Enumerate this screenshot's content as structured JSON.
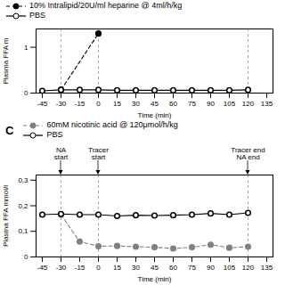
{
  "chart_data": [
    {
      "type": "line",
      "xlabel": "Time (min)",
      "ylabel": "Plasma FFA m",
      "xlim": [
        -50,
        140
      ],
      "xticks": [
        -45,
        -30,
        -15,
        0,
        15,
        30,
        45,
        60,
        75,
        90,
        105,
        120,
        135
      ],
      "ylim": [
        0,
        1.4
      ],
      "yticks": [
        0,
        1
      ],
      "grid": false,
      "legend": "top",
      "vlines": [
        -30,
        0,
        120
      ],
      "series": [
        {
          "name": "10% Intralipid/20U/ml heparine @ 4ml/h/kg",
          "color": "black",
          "marker": "circle",
          "line_style": "dashed",
          "x": [
            -30,
            0
          ],
          "values": [
            0.07,
            1.3
          ]
        },
        {
          "name": "PBS",
          "color": "black",
          "marker": "open_circle",
          "line_style": "solid",
          "x": [
            -45,
            -30,
            -15,
            0,
            15,
            30,
            45,
            60,
            75,
            90,
            105,
            120
          ],
          "values": [
            0.05,
            0.07,
            0.07,
            0.07,
            0.06,
            0.06,
            0.06,
            0.06,
            0.06,
            0.06,
            0.06,
            0.07
          ]
        }
      ]
    },
    {
      "type": "line",
      "title": "C",
      "xlabel": "Time (min)",
      "ylabel": "Plasma FFA mmol/l",
      "xlim": [
        -50,
        140
      ],
      "xticks": [
        -45,
        -30,
        -15,
        0,
        15,
        30,
        45,
        60,
        75,
        90,
        105,
        120,
        135
      ],
      "ylim": [
        0,
        0.32
      ],
      "yticks": [
        0,
        {
          "value": 0.1,
          "label": "0,1"
        },
        {
          "value": 0.2,
          "label": "0,2"
        },
        {
          "value": 0.3,
          "label": "0,3"
        }
      ],
      "grid": false,
      "legend": "top",
      "vlines": [
        -30,
        0,
        120
      ],
      "annotations": [
        {
          "x": -30,
          "text": "NA\nstart"
        },
        {
          "x": 0,
          "text": "Tracer\nstart"
        },
        {
          "x": 120,
          "text": "Tracer end\nNA end"
        }
      ],
      "series": [
        {
          "name": "60mM nicotinic acid @ 120μmol/h/kg",
          "color": "gray",
          "marker": "circle",
          "line_style": "dashed",
          "x": [
            -30,
            -15,
            0,
            15,
            30,
            45,
            60,
            75,
            90,
            105,
            120
          ],
          "values": [
            0.165,
            0.06,
            0.042,
            0.043,
            0.04,
            0.038,
            0.033,
            0.038,
            0.048,
            0.036,
            0.04
          ],
          "errors": [
            0.006,
            0.004,
            0.003,
            0.003,
            0.003,
            0.003,
            0.003,
            0.003,
            0.004,
            0.003,
            0.003
          ]
        },
        {
          "name": "PBS",
          "color": "black",
          "marker": "open_circle",
          "line_style": "solid",
          "x": [
            -45,
            -30,
            -15,
            0,
            15,
            30,
            45,
            60,
            75,
            90,
            105,
            120
          ],
          "values": [
            0.165,
            0.168,
            0.165,
            0.165,
            0.16,
            0.163,
            0.162,
            0.163,
            0.165,
            0.17,
            0.165,
            0.172
          ],
          "errors": [
            0.008,
            0.008,
            0.008,
            0.008,
            0.007,
            0.007,
            0.007,
            0.007,
            0.007,
            0.007,
            0.007,
            0.008
          ]
        }
      ]
    }
  ]
}
